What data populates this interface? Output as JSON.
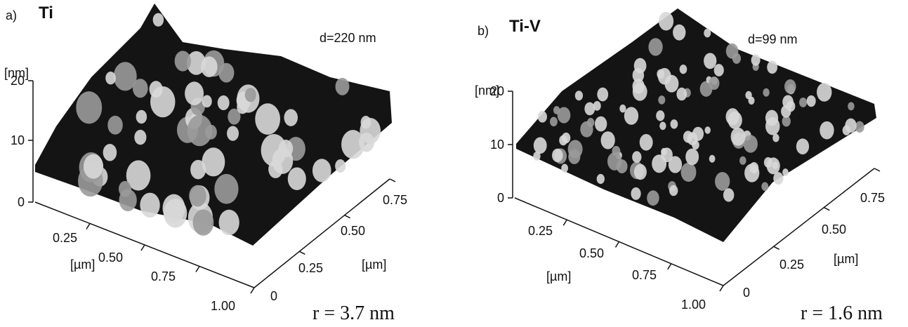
{
  "panels": [
    {
      "letter": "a)",
      "title": "Ti",
      "depth": "d=220 nm",
      "z_unit": "[nm]",
      "z_ticks": [
        "20",
        "10",
        "0"
      ],
      "x_ticks": [
        "0.25",
        "0.50",
        "0.75",
        "1.00"
      ],
      "x_unit": "[µm]",
      "y_ticks": [
        "0",
        "0.25",
        "0.50",
        "0.75"
      ],
      "y_unit": "[µm]",
      "roughness": "r = 3.7 nm"
    },
    {
      "letter": "b)",
      "title": "Ti-V",
      "depth": "d=99 nm",
      "z_unit": "[nm]",
      "z_ticks": [
        "20",
        "10",
        "0"
      ],
      "x_ticks": [
        "0.25",
        "0.50",
        "0.75",
        "1.00"
      ],
      "x_unit": "[µm]",
      "y_ticks": [
        "0",
        "0.25",
        "0.50",
        "0.75"
      ],
      "y_unit": "[µm]",
      "roughness": "r = 1.6 nm"
    }
  ]
}
